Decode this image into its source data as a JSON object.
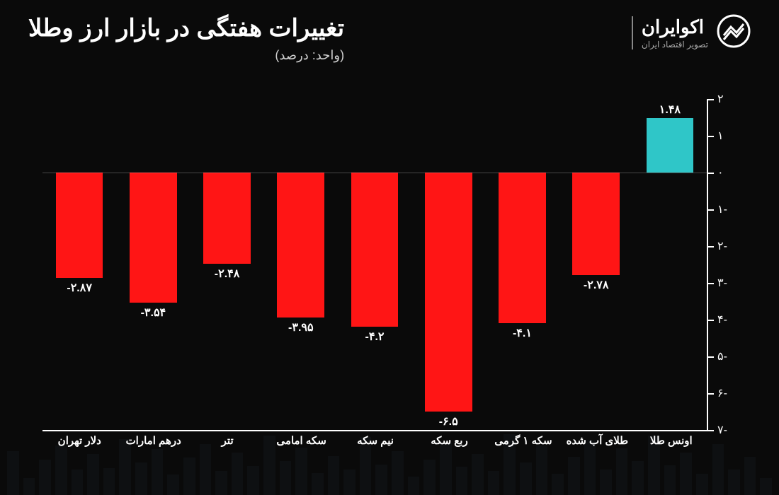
{
  "header": {
    "title": "تغییرات هفتگی در بازار ارز وطلا",
    "subtitle": "(واحد: درصد)"
  },
  "brand": {
    "name": "اکوایران",
    "tagline": "تصویر اقتصاد ایران"
  },
  "chart": {
    "type": "bar",
    "ylim": [
      -7,
      2
    ],
    "ytick_step": 1,
    "axis_color": "#ffffff",
    "background_color": "#0a0a0a",
    "negative_color": "#ff1515",
    "positive_color": "#2fc6c8",
    "label_fontsize": 16,
    "tick_fontsize": 16,
    "categories": [
      "دلار تهران",
      "درهم امارات",
      "تتر",
      "سکه امامی",
      "نیم سکه",
      "ربع سکه",
      "سکه ۱ گرمی",
      "طلای آب شده",
      "اونس طلا"
    ],
    "values": [
      -2.87,
      -3.54,
      -2.48,
      -3.95,
      -4.2,
      -6.5,
      -4.1,
      -2.78,
      1.48
    ],
    "value_labels": [
      "-۲.۸۷",
      "-۳.۵۴",
      "-۲.۴۸",
      "-۳.۹۵",
      "-۴.۲",
      "-۶.۵",
      "-۴.۱",
      "-۲.۷۸",
      "۱.۴۸"
    ],
    "yticks": [
      {
        "v": 2,
        "label": "۲"
      },
      {
        "v": 1,
        "label": "۱"
      },
      {
        "v": 0,
        "label": "۰"
      },
      {
        "v": -1,
        "label": "-۱"
      },
      {
        "v": -2,
        "label": "-۲"
      },
      {
        "v": -3,
        "label": "-۳"
      },
      {
        "v": -4,
        "label": "-۴"
      },
      {
        "v": -5,
        "label": "-۵"
      },
      {
        "v": -6,
        "label": "-۶"
      },
      {
        "v": -7,
        "label": "-۷"
      }
    ]
  }
}
